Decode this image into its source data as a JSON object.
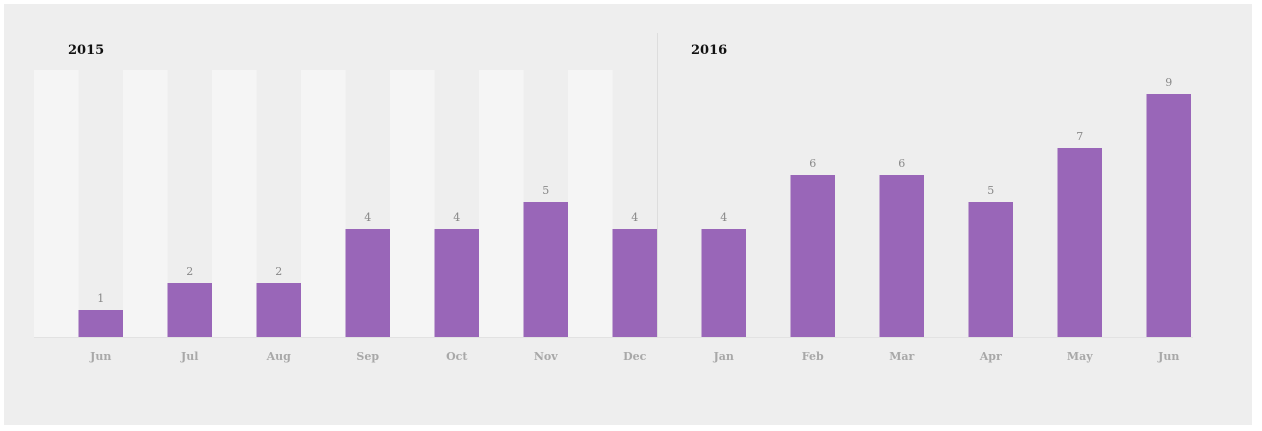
{
  "chart_data": {
    "type": "bar",
    "groups": [
      {
        "label": "2015",
        "categories": [
          "Jun",
          "Jul",
          "Aug",
          "Sep",
          "Oct",
          "Nov",
          "Dec"
        ]
      },
      {
        "label": "2016",
        "categories": [
          "Jan",
          "Feb",
          "Mar",
          "Apr",
          "May",
          "Jun"
        ]
      }
    ],
    "categories": [
      "Jun",
      "Jul",
      "Aug",
      "Sep",
      "Oct",
      "Nov",
      "Dec",
      "Jan",
      "Feb",
      "Mar",
      "Apr",
      "May",
      "Jun"
    ],
    "values": [
      1,
      2,
      2,
      4,
      4,
      5,
      4,
      4,
      6,
      6,
      5,
      7,
      9
    ],
    "ylim": [
      0,
      10
    ],
    "grid": false,
    "show_value_labels": true,
    "colors": {
      "bar": "#9966b8",
      "panel_background": "#eeeeee",
      "highlight_group_background": "#f5f5f5",
      "highlight_band": "#f3f3f3"
    }
  }
}
